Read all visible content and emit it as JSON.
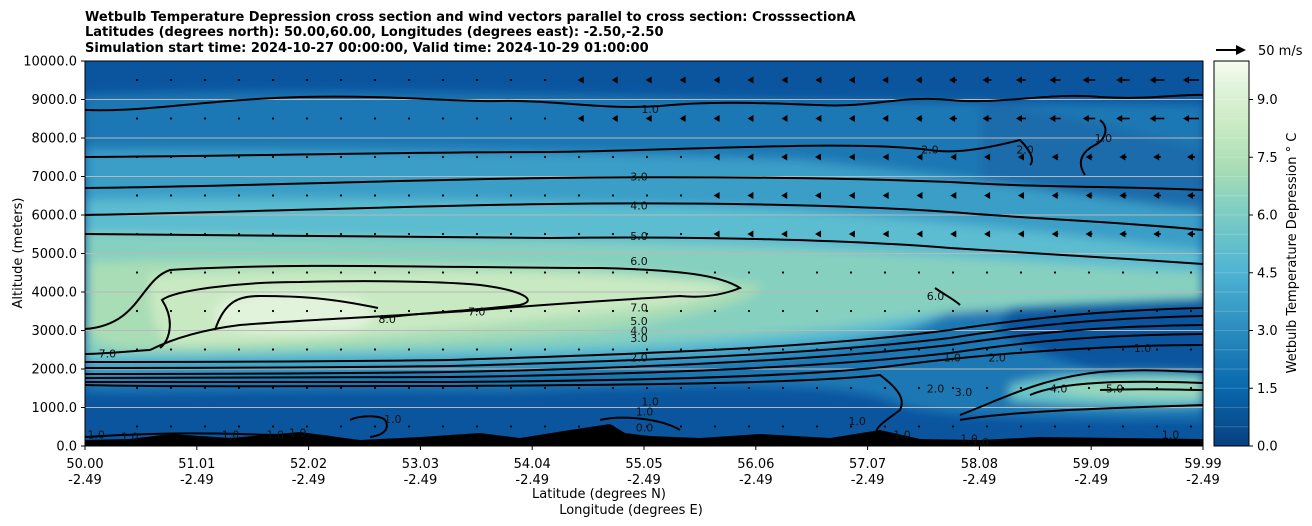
{
  "chart_data": {
    "type": "contour",
    "title_lines": [
      "Wetbulb Temperature Depression cross section and wind vectors parallel to cross section: CrosssectionA",
      "Latitudes (degrees north): 50.00,60.00, Longitudes (degrees east): -2.50,-2.50",
      "Simulation start time: 2024-10-27 00:00:00, Valid time: 2024-10-29 01:00:00"
    ],
    "ylabel": "Altitude (meters)",
    "xlabel_lines": [
      "Latitude (degrees N)",
      "Longitude (degrees E)"
    ],
    "ylim": [
      0,
      10000
    ],
    "y_ticks": [
      "0.0",
      "1000.0",
      "2000.0",
      "3000.0",
      "4000.0",
      "5000.0",
      "6000.0",
      "7000.0",
      "8000.0",
      "9000.0",
      "10000.0"
    ],
    "x_range": [
      50.0,
      59.99
    ],
    "x_ticks": [
      {
        "lat": "50.00",
        "lon": "-2.49"
      },
      {
        "lat": "51.01",
        "lon": "-2.49"
      },
      {
        "lat": "52.02",
        "lon": "-2.49"
      },
      {
        "lat": "53.03",
        "lon": "-2.49"
      },
      {
        "lat": "54.04",
        "lon": "-2.49"
      },
      {
        "lat": "55.05",
        "lon": "-2.49"
      },
      {
        "lat": "56.06",
        "lon": "-2.49"
      },
      {
        "lat": "57.07",
        "lon": "-2.49"
      },
      {
        "lat": "58.08",
        "lon": "-2.49"
      },
      {
        "lat": "59.09",
        "lon": "-2.49"
      },
      {
        "lat": "59.99",
        "lon": "-2.49"
      }
    ],
    "grid": "horizontal",
    "colorbar": {
      "label": "Wetbulb Temperature Depression ° C",
      "range": [
        0,
        10
      ],
      "ticks": [
        "0.0",
        "1.5",
        "3.0",
        "4.5",
        "6.0",
        "7.5",
        "9.0"
      ],
      "levels": 20,
      "cmap": [
        "#084081",
        "#0868ac",
        "#2b8cbe",
        "#4eb3d3",
        "#7bccc4",
        "#a8ddb5",
        "#ccebc5",
        "#e0f3db",
        "#f7fcf0"
      ]
    },
    "quiver_key": "50 m/s",
    "contour_levels": [
      0,
      1,
      2,
      3,
      4,
      5,
      6,
      7,
      8
    ],
    "contour_labels": [
      {
        "text": "1.0",
        "x": 55.05,
        "y": 8750
      },
      {
        "text": "2.0",
        "x": 57.55,
        "y": 7700
      },
      {
        "text": "2.0",
        "x": 58.4,
        "y": 7700
      },
      {
        "text": "1.0",
        "x": 59.1,
        "y": 8000
      },
      {
        "text": "3.0",
        "x": 54.95,
        "y": 7000
      },
      {
        "text": "4.0",
        "x": 54.95,
        "y": 6250
      },
      {
        "text": "5.0",
        "x": 54.95,
        "y": 5450
      },
      {
        "text": "6.0",
        "x": 54.95,
        "y": 4800
      },
      {
        "text": "7.0",
        "x": 54.95,
        "y": 3600
      },
      {
        "text": "7.0",
        "x": 53.5,
        "y": 3500
      },
      {
        "text": "8.0",
        "x": 52.7,
        "y": 3300
      },
      {
        "text": "6.0",
        "x": 57.6,
        "y": 3900
      },
      {
        "text": "5.0",
        "x": 54.95,
        "y": 3250
      },
      {
        "text": "4.0",
        "x": 54.95,
        "y": 3000
      },
      {
        "text": "3.0",
        "x": 54.95,
        "y": 2800
      },
      {
        "text": "2.0",
        "x": 54.95,
        "y": 2300
      },
      {
        "text": "1.0",
        "x": 57.75,
        "y": 2300
      },
      {
        "text": "2.0",
        "x": 58.15,
        "y": 2300
      },
      {
        "text": "2.0",
        "x": 57.6,
        "y": 1500
      },
      {
        "text": "3.0",
        "x": 57.85,
        "y": 1400
      },
      {
        "text": "4.0",
        "x": 58.7,
        "y": 1500
      },
      {
        "text": "5.0",
        "x": 59.2,
        "y": 1500
      },
      {
        "text": "1.0",
        "x": 59.45,
        "y": 2550
      },
      {
        "text": "7.0",
        "x": 50.2,
        "y": 2400
      },
      {
        "text": "1.0",
        "x": 55.05,
        "y": 1150
      },
      {
        "text": "1.0",
        "x": 55.0,
        "y": 900
      },
      {
        "text": "0.0",
        "x": 55.0,
        "y": 480
      },
      {
        "text": "1.0",
        "x": 52.75,
        "y": 700
      },
      {
        "text": "1.0",
        "x": 50.1,
        "y": 300
      },
      {
        "text": "1.0",
        "x": 50.4,
        "y": 250
      },
      {
        "text": "1.0",
        "x": 51.3,
        "y": 300
      },
      {
        "text": "1.0",
        "x": 51.7,
        "y": 300
      },
      {
        "text": "1.0",
        "x": 51.9,
        "y": 350
      },
      {
        "text": "1.0",
        "x": 56.9,
        "y": 650
      },
      {
        "text": "1.0",
        "x": 57.3,
        "y": 300
      },
      {
        "text": "1.0",
        "x": 57.9,
        "y": 200
      },
      {
        "text": "1.0",
        "x": 58.0,
        "y": 100
      },
      {
        "text": "1.0",
        "x": 59.7,
        "y": 300
      }
    ]
  }
}
